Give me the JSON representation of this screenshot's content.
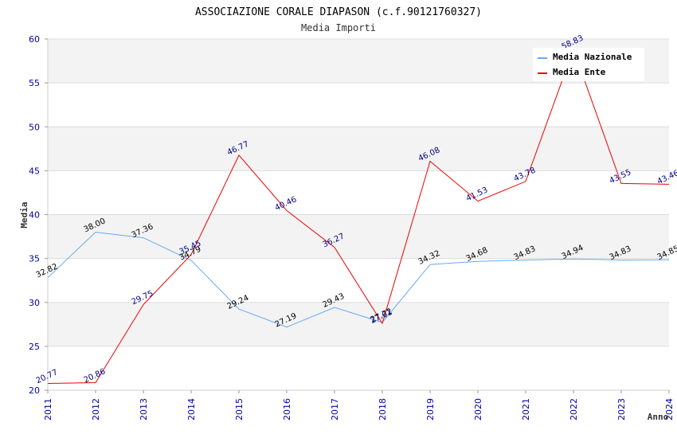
{
  "chart_data": {
    "type": "line",
    "title": "ASSOCIAZIONE CORALE DIAPASON (c.f.90121760327)",
    "subtitle": "Media Importi",
    "xlabel": "Anno",
    "ylabel": "Media",
    "ylim": [
      20,
      60
    ],
    "yticks": [
      "20",
      "25",
      "30",
      "35",
      "40",
      "45",
      "50",
      "55",
      "60"
    ],
    "categories": [
      "2011",
      "2012",
      "2013",
      "2014",
      "2015",
      "2016",
      "2017",
      "2018",
      "2019",
      "2020",
      "2021",
      "2022",
      "2023",
      "2024"
    ],
    "grid": true,
    "legend_position": "top-right",
    "series": [
      {
        "name": "Media Nazionale",
        "color": "#66aaee",
        "values": [
          32.82,
          38.0,
          37.36,
          34.79,
          29.24,
          27.19,
          29.43,
          27.72,
          34.32,
          34.68,
          34.83,
          34.94,
          34.83,
          34.85
        ],
        "labels": [
          "32.82",
          "38.00",
          "37.36",
          "34.79",
          "29.24",
          "27.19",
          "29.43",
          "27.72",
          "34.32",
          "34.68",
          "34.83",
          "34.94",
          "34.83",
          "34.85"
        ]
      },
      {
        "name": "Media Ente",
        "color": "#ee0000",
        "values": [
          20.77,
          20.86,
          29.75,
          35.45,
          46.77,
          40.46,
          36.27,
          27.61,
          46.08,
          41.53,
          43.78,
          58.83,
          43.55,
          43.46
        ],
        "labels": [
          "20.77",
          "20.86",
          "29.75",
          "35.45",
          "46.77",
          "40.46",
          "36.27",
          "27.61",
          "46.08",
          "41.53",
          "43.78",
          "58.83",
          "43.55",
          "43.46"
        ]
      }
    ]
  }
}
